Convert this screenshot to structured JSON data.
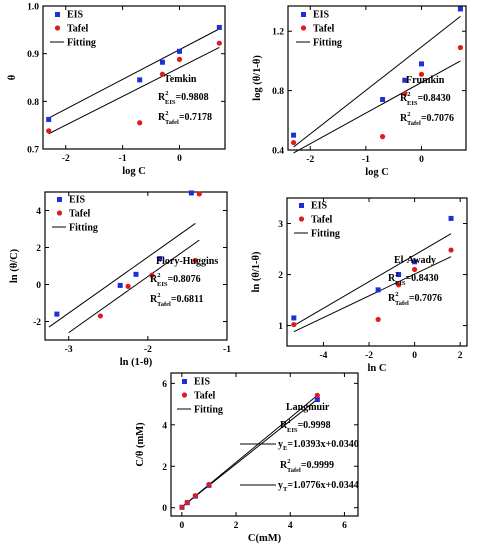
{
  "colors": {
    "eis": "#1f2fd6",
    "tafel": "#e01b1b",
    "fit": "#000000"
  },
  "legend": {
    "eis": "EIS",
    "tafel": "Tafel",
    "fitting": "Fitting"
  },
  "chart_data": [
    {
      "id": "temkin",
      "type": "scatter",
      "xlabel": "log C",
      "ylabel": "θ",
      "xlim": [
        -2.4,
        0.8
      ],
      "ylim": [
        0.7,
        1.0
      ],
      "xticks": [
        "-2",
        "-1",
        "0"
      ],
      "xtick_vals": [
        -2,
        -1,
        0
      ],
      "yticks": [
        "0.7",
        "0.8",
        "0.9",
        "1.0"
      ],
      "ytick_vals": [
        0.7,
        0.8,
        0.9,
        1.0
      ],
      "series": [
        {
          "name": "EIS",
          "x": [
            -2.3,
            -0.7,
            -0.3,
            0,
            0.7
          ],
          "y": [
            0.762,
            0.845,
            0.882,
            0.905,
            0.955
          ]
        },
        {
          "name": "Tafel",
          "x": [
            -2.3,
            -0.7,
            -0.3,
            0,
            0.7
          ],
          "y": [
            0.738,
            0.755,
            0.857,
            0.888,
            0.922
          ]
        }
      ],
      "fits": [
        {
          "x": [
            -2.3,
            0.7
          ],
          "y": [
            0.765,
            0.952
          ]
        },
        {
          "x": [
            -2.3,
            0.7
          ],
          "y": [
            0.732,
            0.913
          ]
        }
      ],
      "annotation": {
        "title": "Temkin",
        "r_main_a": "R",
        "sup_a": "2",
        "sub_a": "EIS",
        "val_a": "=0.9808",
        "r_main_b": "R",
        "sup_b": "2",
        "sub_b": "Tafel",
        "val_b": "=0.7178"
      }
    },
    {
      "id": "frumkin",
      "type": "scatter",
      "xlabel": "log C",
      "ylabel": "log (θ/1-θ)",
      "xlim": [
        -2.4,
        0.8
      ],
      "ylim": [
        0.4,
        1.37
      ],
      "xticks": [
        "-2",
        "-1",
        "0"
      ],
      "xtick_vals": [
        -2,
        -1,
        0
      ],
      "yticks": [
        "0.4",
        "0.8",
        "1.2"
      ],
      "ytick_vals": [
        0.4,
        0.8,
        1.2
      ],
      "series": [
        {
          "name": "EIS",
          "x": [
            -2.3,
            -0.7,
            -0.3,
            0,
            0.7
          ],
          "y": [
            0.5,
            0.74,
            0.87,
            0.98,
            1.35
          ]
        },
        {
          "name": "Tafel",
          "x": [
            -2.3,
            -0.7,
            -0.3,
            0,
            0.7
          ],
          "y": [
            0.45,
            0.49,
            0.78,
            0.91,
            1.09
          ]
        }
      ],
      "fits": [
        {
          "x": [
            -2.3,
            0.7
          ],
          "y": [
            0.42,
            1.3
          ]
        },
        {
          "x": [
            -2.3,
            0.7
          ],
          "y": [
            0.38,
            1.0
          ]
        }
      ],
      "annotation": {
        "title": "Frumkin",
        "r_main_a": "R",
        "sup_a": "2",
        "sub_a": "EIS",
        "val_a": "=0.8430",
        "r_main_b": "R",
        "sup_b": "2",
        "sub_b": "Tafel",
        "val_b": "=0.7076"
      }
    },
    {
      "id": "flory",
      "type": "scatter",
      "xlabel": "ln (1-θ)",
      "ylabel": "ln (θ/C)",
      "xlim": [
        -3.3,
        -1.0
      ],
      "ylim": [
        -3.0,
        5.0
      ],
      "xticks": [
        "-3",
        "-2",
        "-1"
      ],
      "xtick_vals": [
        -3,
        -2,
        -1
      ],
      "yticks": [
        "-2",
        "0",
        "2",
        "4"
      ],
      "ytick_vals": [
        -2,
        0,
        2,
        4
      ],
      "series": [
        {
          "name": "EIS",
          "x": [
            -3.15,
            -2.35,
            -2.15,
            -1.85,
            -1.45
          ],
          "y": [
            -1.6,
            -0.05,
            0.55,
            1.4,
            4.95
          ]
        },
        {
          "name": "Tafel",
          "x": [
            -2.6,
            -2.25,
            -1.95,
            -1.4,
            -1.35
          ],
          "y": [
            -1.7,
            -0.1,
            0.5,
            1.3,
            4.9
          ]
        }
      ],
      "fits": [
        {
          "x": [
            -3.25,
            -1.4
          ],
          "y": [
            -2.3,
            3.3
          ]
        },
        {
          "x": [
            -3.0,
            -1.35
          ],
          "y": [
            -2.6,
            2.4
          ]
        }
      ],
      "annotation": {
        "title": "Flory-Huggins",
        "r_main_a": "R",
        "sup_a": "2",
        "sub_a": "EIS",
        "val_a": "=0.8076",
        "r_main_b": "R",
        "sup_b": "2",
        "sub_b": "Tafel",
        "val_b": "=0.6811"
      }
    },
    {
      "id": "elawady",
      "type": "scatter",
      "xlabel": "ln C",
      "ylabel": "ln (θ/1-θ)",
      "xlim": [
        -5.6,
        2.3
      ],
      "ylim": [
        0.6,
        3.5
      ],
      "xticks": [
        "-4",
        "-2",
        "0",
        "2"
      ],
      "xtick_vals": [
        -4,
        -2,
        0,
        2
      ],
      "yticks": [
        "1",
        "2",
        "3"
      ],
      "ytick_vals": [
        1,
        2,
        3
      ],
      "series": [
        {
          "name": "EIS",
          "x": [
            -5.3,
            -1.6,
            -0.7,
            0,
            1.6
          ],
          "y": [
            1.15,
            1.7,
            2.0,
            2.25,
            3.1
          ]
        },
        {
          "name": "Tafel",
          "x": [
            -5.3,
            -1.6,
            -0.7,
            0,
            1.6
          ],
          "y": [
            1.02,
            1.12,
            1.8,
            2.1,
            2.48
          ]
        }
      ],
      "fits": [
        {
          "x": [
            -5.3,
            1.6
          ],
          "y": [
            1.0,
            2.8
          ]
        },
        {
          "x": [
            -5.3,
            1.6
          ],
          "y": [
            0.88,
            2.35
          ]
        }
      ],
      "annotation": {
        "title": "El-Awady",
        "r_main_a": "R",
        "sup_a": "2",
        "sub_a": "EIS",
        "val_a": "=0.8430",
        "r_main_b": "R",
        "sup_b": "2",
        "sub_b": "Tafel",
        "val_b": "=0.7076"
      }
    },
    {
      "id": "langmuir",
      "type": "scatter",
      "xlabel": "C(mM)",
      "ylabel": "C/θ (mM)",
      "xlim": [
        -0.4,
        6.5
      ],
      "ylim": [
        -0.4,
        6.5
      ],
      "xticks": [
        "0",
        "2",
        "4",
        "6"
      ],
      "xtick_vals": [
        0,
        2,
        4,
        6
      ],
      "yticks": [
        "0",
        "2",
        "4",
        "6"
      ],
      "ytick_vals": [
        0,
        2,
        4,
        6
      ],
      "series": [
        {
          "name": "EIS",
          "x": [
            0.005,
            0.2,
            0.5,
            1.0,
            5.0
          ],
          "y": [
            0.02,
            0.24,
            0.56,
            1.08,
            5.22
          ]
        },
        {
          "name": "Tafel",
          "x": [
            0.005,
            0.2,
            0.5,
            1.0,
            5.0
          ],
          "y": [
            0.02,
            0.25,
            0.58,
            1.12,
            5.42
          ]
        }
      ],
      "fits": [
        {
          "x": [
            0,
            5
          ],
          "y": [
            0.034,
            5.2305
          ]
        },
        {
          "x": [
            0,
            5
          ],
          "y": [
            0.0344,
            5.4224
          ]
        }
      ],
      "annotation": {
        "title": "Langmuir",
        "r_main_a": "R",
        "sup_a": "2",
        "sub_a": "EIS",
        "val_a": "=0.9998",
        "r_main_b": "R",
        "sup_b": "2",
        "sub_b": "Tafel",
        "val_b": "=0.9999",
        "eq_a_main": "y",
        "eq_a_sub": "E",
        "eq_a_val": "=1.0393x+0.0340",
        "eq_b_main": "y",
        "eq_b_sub": "T",
        "eq_b_val": "=1.0776x+0.0344"
      }
    }
  ]
}
